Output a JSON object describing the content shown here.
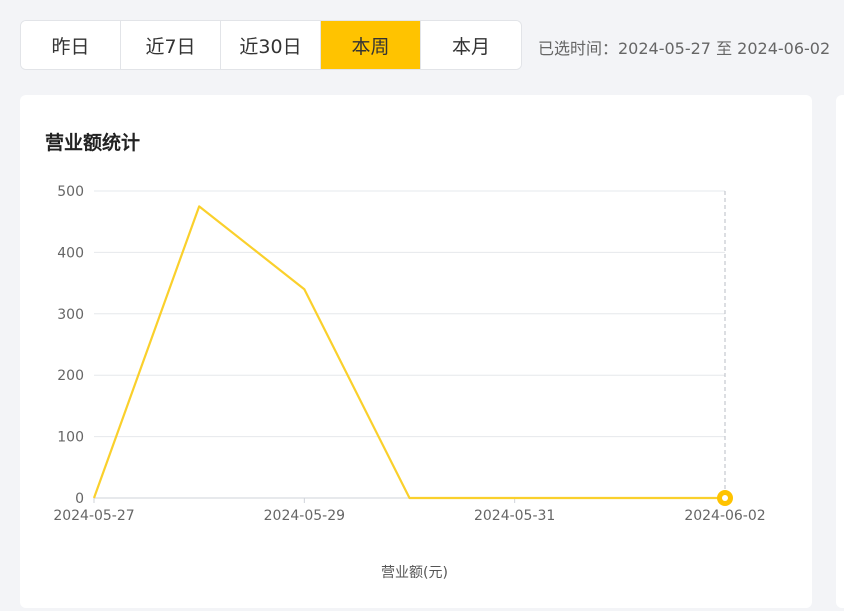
{
  "filters": {
    "tabs": [
      {
        "label": "昨日",
        "active": false
      },
      {
        "label": "近7日",
        "active": false
      },
      {
        "label": "近30日",
        "active": false
      },
      {
        "label": "本周",
        "active": true
      },
      {
        "label": "本月",
        "active": false
      }
    ],
    "selected_range": "已选时间：2024-05-27 至 2024-06-02"
  },
  "card": {
    "title": "营业额统计"
  },
  "colors": {
    "accent": "#ffc300",
    "line": "#fad02c"
  },
  "chart_data": {
    "type": "line",
    "title": "营业额统计",
    "x": [
      "2024-05-27",
      "2024-05-28",
      "2024-05-29",
      "2024-05-30",
      "2024-05-31",
      "2024-06-01",
      "2024-06-02"
    ],
    "x_tick_labels": [
      "2024-05-27",
      "2024-05-29",
      "2024-05-31",
      "2024-06-02"
    ],
    "series": [
      {
        "name": "营业额(元)",
        "values": [
          0,
          475,
          340,
          0,
          0,
          0,
          0
        ]
      }
    ],
    "xlabel": "",
    "ylabel": "",
    "ylim": [
      0,
      500
    ],
    "yticks": [
      0,
      100,
      200,
      300,
      400,
      500
    ],
    "legend": "bottom",
    "grid": true
  }
}
